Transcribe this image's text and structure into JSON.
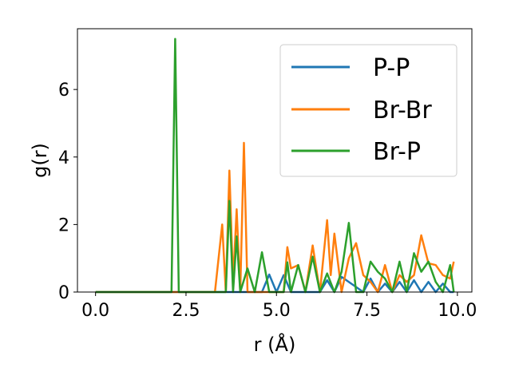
{
  "chart_data": {
    "type": "line",
    "title": "",
    "xlabel": "r (Å)",
    "ylabel": "g(r)",
    "xlim": [
      -0.5,
      10.4
    ],
    "ylim": [
      0,
      7.8
    ],
    "xticks": [
      0.0,
      2.5,
      5.0,
      7.5,
      10.0
    ],
    "xtick_labels": [
      "0.0",
      "2.5",
      "5.0",
      "7.5",
      "10.0"
    ],
    "yticks": [
      0,
      2,
      4,
      6
    ],
    "ytick_labels": [
      "0",
      "2",
      "4",
      "6"
    ],
    "grid": false,
    "legend_position": "top-right",
    "series": [
      {
        "name": "P-P",
        "color": "#1f77b4",
        "x": [
          0.0,
          4.6,
          4.8,
          5.0,
          5.2,
          5.4,
          6.2,
          6.4,
          6.6,
          6.8,
          7.4,
          7.6,
          7.8,
          8.0,
          8.2,
          8.4,
          8.6,
          8.8,
          9.0,
          9.2,
          9.4,
          9.6,
          9.8,
          9.9
        ],
        "y": [
          0.0,
          0.0,
          0.52,
          0.0,
          0.5,
          0.0,
          0.0,
          0.35,
          0.0,
          0.45,
          0.0,
          0.4,
          0.0,
          0.25,
          0.0,
          0.3,
          0.0,
          0.35,
          0.0,
          0.3,
          0.0,
          0.25,
          0.0,
          0.0
        ]
      },
      {
        "name": "Br-Br",
        "color": "#ff7f0e",
        "x": [
          0.0,
          3.3,
          3.5,
          3.6,
          3.7,
          3.8,
          3.9,
          4.0,
          4.1,
          4.2,
          4.4,
          5.2,
          5.3,
          5.4,
          5.6,
          5.8,
          6.0,
          6.2,
          6.4,
          6.5,
          6.6,
          6.8,
          7.0,
          7.2,
          7.4,
          7.6,
          7.8,
          8.0,
          8.2,
          8.4,
          8.6,
          8.8,
          9.0,
          9.2,
          9.4,
          9.6,
          9.8,
          9.9
        ],
        "y": [
          0.0,
          0.0,
          2.0,
          0.0,
          3.6,
          0.3,
          2.45,
          0.0,
          4.42,
          0.0,
          0.0,
          0.0,
          1.33,
          0.7,
          0.8,
          0.0,
          1.38,
          0.0,
          2.13,
          0.5,
          1.73,
          0.0,
          1.0,
          1.45,
          0.5,
          0.3,
          0.0,
          0.8,
          0.0,
          0.5,
          0.3,
          0.5,
          1.68,
          0.85,
          0.8,
          0.5,
          0.4,
          0.9
        ]
      },
      {
        "name": "Br-P",
        "color": "#2ca02c",
        "x": [
          0.0,
          2.1,
          2.2,
          2.3,
          3.6,
          3.7,
          3.8,
          3.9,
          4.0,
          4.2,
          4.4,
          4.6,
          4.8,
          5.2,
          5.3,
          5.4,
          5.6,
          5.8,
          6.0,
          6.2,
          6.4,
          6.6,
          6.8,
          7.0,
          7.2,
          7.4,
          7.6,
          7.8,
          8.0,
          8.2,
          8.4,
          8.6,
          8.8,
          9.0,
          9.2,
          9.4,
          9.6,
          9.8,
          9.9
        ],
        "y": [
          0.0,
          0.0,
          7.5,
          0.0,
          0.0,
          2.7,
          0.0,
          1.65,
          0.0,
          0.7,
          0.0,
          1.18,
          0.0,
          0.0,
          0.88,
          0.0,
          0.8,
          0.0,
          1.05,
          0.0,
          0.55,
          0.0,
          0.6,
          2.05,
          0.0,
          0.0,
          0.9,
          0.6,
          0.4,
          0.0,
          0.9,
          0.0,
          1.15,
          0.6,
          0.9,
          0.3,
          0.0,
          0.8,
          0.0
        ]
      }
    ]
  }
}
